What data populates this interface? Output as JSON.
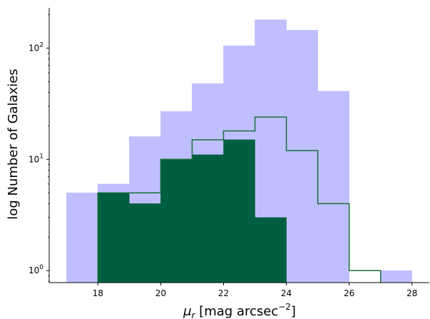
{
  "chart_data": {
    "type": "bar",
    "xlabel": "μ",
    "xlabel_sub": "r",
    "xlabel_rest": " [mag arcsec",
    "xlabel_sup": "−2",
    "xlabel_close": "]",
    "ylabel": "log Number of Galaxies",
    "yscale": "log",
    "xlim": [
      16.45,
      28.55
    ],
    "ylim": [
      0.78,
      230
    ],
    "x_ticks": [
      {
        "value": 18,
        "label": "18"
      },
      {
        "value": 20,
        "label": "20"
      },
      {
        "value": 22,
        "label": "22"
      },
      {
        "value": 24,
        "label": "24"
      },
      {
        "value": 26,
        "label": "26"
      },
      {
        "value": 28,
        "label": "28"
      }
    ],
    "y_ticks": [
      {
        "value": 1,
        "base": "10",
        "exp": "0"
      },
      {
        "value": 10,
        "base": "10",
        "exp": "1"
      },
      {
        "value": 100,
        "base": "10",
        "exp": "2"
      }
    ],
    "bin_edges": [
      17,
      18,
      19,
      20,
      21,
      22,
      23,
      24,
      25,
      26,
      27,
      28
    ],
    "series": [
      {
        "style": "filled",
        "color": "#bfbfff",
        "values": [
          5,
          6,
          16,
          27,
          48,
          105,
          180,
          145,
          41,
          0,
          1
        ]
      },
      {
        "style": "filled",
        "color": "#005f40",
        "values": [
          0,
          5,
          4,
          10,
          11,
          15,
          3,
          0,
          0,
          0,
          0
        ]
      },
      {
        "style": "step",
        "color": "#1a6e3a",
        "values": [
          0,
          5,
          5,
          10,
          15,
          18,
          24,
          12,
          4,
          1,
          0
        ]
      }
    ]
  }
}
